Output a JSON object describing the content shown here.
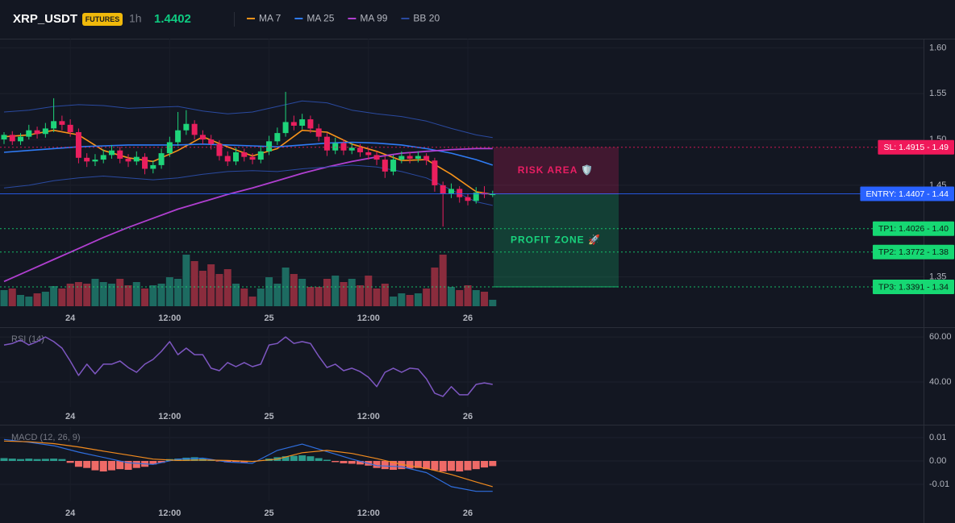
{
  "header": {
    "symbol": "XRP_USDT",
    "badge": "FUTURES",
    "interval": "1h",
    "last_price": 1.4402
  },
  "chart_data": [
    {
      "type": "candlestick",
      "up_color": "#1ed47a",
      "down_color": "#ea1f5e",
      "volume_up_color": "#1d6b61",
      "volume_down_color": "#8a2c3d",
      "candles": [
        [
          1.5,
          1.508,
          1.495,
          1.505
        ],
        [
          1.505,
          1.509,
          1.494,
          1.498
        ],
        [
          1.498,
          1.507,
          1.494,
          1.503
        ],
        [
          1.503,
          1.516,
          1.5,
          1.51
        ],
        [
          1.51,
          1.514,
          1.501,
          1.506
        ],
        [
          1.506,
          1.518,
          1.502,
          1.512
        ],
        [
          1.512,
          1.545,
          1.508,
          1.52
        ],
        [
          1.52,
          1.526,
          1.51,
          1.516
        ],
        [
          1.516,
          1.522,
          1.503,
          1.508
        ],
        [
          1.508,
          1.512,
          1.474,
          1.48
        ],
        [
          1.48,
          1.485,
          1.47,
          1.476
        ],
        [
          1.476,
          1.484,
          1.471,
          1.478
        ],
        [
          1.478,
          1.489,
          1.474,
          1.483
        ],
        [
          1.483,
          1.494,
          1.479,
          1.488
        ],
        [
          1.488,
          1.492,
          1.474,
          1.479
        ],
        [
          1.479,
          1.484,
          1.47,
          1.476
        ],
        [
          1.476,
          1.487,
          1.472,
          1.481
        ],
        [
          1.481,
          1.485,
          1.462,
          1.468
        ],
        [
          1.468,
          1.477,
          1.463,
          1.472
        ],
        [
          1.472,
          1.49,
          1.468,
          1.485
        ],
        [
          1.485,
          1.503,
          1.481,
          1.497
        ],
        [
          1.497,
          1.53,
          1.493,
          1.51
        ],
        [
          1.51,
          1.532,
          1.505,
          1.517
        ],
        [
          1.517,
          1.521,
          1.5,
          1.505
        ],
        [
          1.505,
          1.51,
          1.495,
          1.5
        ],
        [
          1.5,
          1.505,
          1.489,
          1.495
        ],
        [
          1.495,
          1.499,
          1.477,
          1.482
        ],
        [
          1.482,
          1.487,
          1.471,
          1.476
        ],
        [
          1.476,
          1.491,
          1.472,
          1.486
        ],
        [
          1.486,
          1.49,
          1.476,
          1.481
        ],
        [
          1.481,
          1.485,
          1.473,
          1.478
        ],
        [
          1.478,
          1.493,
          1.474,
          1.487
        ],
        [
          1.487,
          1.504,
          1.483,
          1.498
        ],
        [
          1.498,
          1.513,
          1.494,
          1.507
        ],
        [
          1.507,
          1.552,
          1.503,
          1.519
        ],
        [
          1.519,
          1.526,
          1.51,
          1.515
        ],
        [
          1.515,
          1.528,
          1.511,
          1.522
        ],
        [
          1.522,
          1.526,
          1.507,
          1.512
        ],
        [
          1.512,
          1.517,
          1.498,
          1.503
        ],
        [
          1.503,
          1.507,
          1.482,
          1.488
        ],
        [
          1.488,
          1.502,
          1.484,
          1.496
        ],
        [
          1.496,
          1.5,
          1.483,
          1.488
        ],
        [
          1.488,
          1.496,
          1.484,
          1.491
        ],
        [
          1.491,
          1.495,
          1.481,
          1.486
        ],
        [
          1.486,
          1.49,
          1.478,
          1.483
        ],
        [
          1.483,
          1.487,
          1.472,
          1.478
        ],
        [
          1.478,
          1.482,
          1.458,
          1.465
        ],
        [
          1.465,
          1.483,
          1.461,
          1.478
        ],
        [
          1.478,
          1.487,
          1.474,
          1.482
        ],
        [
          1.482,
          1.486,
          1.474,
          1.479
        ],
        [
          1.479,
          1.487,
          1.475,
          1.482
        ],
        [
          1.482,
          1.485,
          1.472,
          1.477
        ],
        [
          1.477,
          1.48,
          1.443,
          1.45
        ],
        [
          1.45,
          1.454,
          1.405,
          1.441
        ],
        [
          1.441,
          1.452,
          1.436,
          1.446
        ],
        [
          1.446,
          1.449,
          1.431,
          1.437
        ],
        [
          1.437,
          1.441,
          1.428,
          1.433
        ],
        [
          1.433,
          1.448,
          1.43,
          1.442
        ],
        [
          1.442,
          1.449,
          1.436,
          1.44
        ],
        [
          1.44,
          1.444,
          1.437,
          1.4402
        ]
      ],
      "volume": [
        20,
        22,
        14,
        12,
        16,
        18,
        25,
        22,
        28,
        30,
        28,
        34,
        30,
        28,
        34,
        26,
        30,
        22,
        26,
        28,
        36,
        34,
        64,
        56,
        44,
        52,
        40,
        46,
        28,
        22,
        12,
        22,
        36,
        28,
        48,
        40,
        34,
        24,
        24,
        34,
        38,
        30,
        34,
        26,
        38,
        22,
        28,
        12,
        16,
        14,
        16,
        22,
        48,
        64,
        24,
        20,
        26,
        20,
        18,
        8
      ],
      "ma_x": [
        0,
        3,
        6,
        9,
        12,
        15,
        18,
        21,
        24,
        27,
        30,
        33,
        36,
        39,
        42,
        45,
        48,
        51,
        54,
        57,
        59
      ],
      "series": [
        {
          "name": "MA 7",
          "color": "#f7931a",
          "values": [
            1.503,
            1.505,
            1.51,
            1.505,
            1.488,
            1.48,
            1.476,
            1.488,
            1.503,
            1.492,
            1.482,
            1.49,
            1.51,
            1.508,
            1.495,
            1.487,
            1.477,
            1.478,
            1.462,
            1.443,
            1.44
          ]
        },
        {
          "name": "MA 25",
          "color": "#2f7bf5",
          "values": [
            1.486,
            1.488,
            1.49,
            1.492,
            1.493,
            1.494,
            1.494,
            1.494,
            1.495,
            1.494,
            1.493,
            1.492,
            1.494,
            1.496,
            1.497,
            1.496,
            1.494,
            1.49,
            1.485,
            1.478,
            1.472
          ]
        },
        {
          "name": "MA 99",
          "color": "#b03fd0",
          "values": [
            1.345,
            1.357,
            1.369,
            1.381,
            1.393,
            1.404,
            1.414,
            1.424,
            1.432,
            1.44,
            1.447,
            1.455,
            1.463,
            1.47,
            1.476,
            1.481,
            1.485,
            1.487,
            1.489,
            1.49,
            1.49
          ]
        },
        {
          "name": "BB 20",
          "color": "#2a4aa0",
          "upper": [
            1.53,
            1.532,
            1.536,
            1.538,
            1.537,
            1.534,
            1.535,
            1.536,
            1.531,
            1.528,
            1.53,
            1.536,
            1.542,
            1.54,
            1.532,
            1.528,
            1.525,
            1.52,
            1.512,
            1.505,
            1.502
          ],
          "lower": [
            1.447,
            1.45,
            1.455,
            1.458,
            1.46,
            1.458,
            1.456,
            1.458,
            1.462,
            1.465,
            1.466,
            1.465,
            1.468,
            1.47,
            1.472,
            1.47,
            1.465,
            1.458,
            1.445,
            1.432,
            1.428
          ]
        }
      ],
      "levels": [
        {
          "label": "SL: 1.4915 - 1.49",
          "value": 1.4915,
          "color": "#f0185a",
          "style": "dotted"
        },
        {
          "label": "ENTRY: 1.4407 - 1.44",
          "value": 1.4407,
          "color": "#2962ff",
          "style": "solid"
        },
        {
          "label": "TP1: 1.4026 - 1.40",
          "value": 1.4026,
          "color": "#16d873",
          "style": "dotted"
        },
        {
          "label": "TP2: 1.3772 - 1.38",
          "value": 1.3772,
          "color": "#16d873",
          "style": "dotted"
        },
        {
          "label": "TP3: 1.3391 - 1.34",
          "value": 1.3391,
          "color": "#16d873",
          "style": "dotted"
        }
      ],
      "zones": [
        {
          "label": "RISK AREA 🛡️",
          "from_level": 0,
          "to_level": 1,
          "color": "#e91e63"
        },
        {
          "label": "PROFIT ZONE 🚀",
          "from_level": 1,
          "to_level": 4,
          "color": "#19d37d"
        }
      ],
      "xticks": [
        {
          "value": 8,
          "label": "24"
        },
        {
          "value": 20,
          "label": "12:00"
        },
        {
          "value": 32,
          "label": "25"
        },
        {
          "value": 44,
          "label": "12:00"
        },
        {
          "value": 56,
          "label": "26"
        }
      ],
      "ylim": [
        1.318,
        1.61
      ],
      "yticks": [
        {
          "value": 1.6,
          "label": "1.60"
        },
        {
          "value": 1.55,
          "label": "1.55"
        },
        {
          "value": 1.5,
          "label": "1.50"
        },
        {
          "value": 1.45,
          "label": "1.45"
        },
        {
          "value": 1.35,
          "label": "1.35"
        }
      ]
    },
    {
      "type": "line",
      "title": "RSI (14)",
      "color": "#7e57c2",
      "values": [
        56.4,
        57.1,
        58.6,
        56.4,
        57.9,
        60.0,
        57.9,
        55.0,
        49.3,
        42.9,
        47.9,
        43.6,
        47.9,
        47.9,
        49.3,
        46.4,
        44.3,
        47.9,
        50.0,
        53.6,
        57.9,
        52.1,
        55.0,
        52.1,
        52.1,
        46.1,
        45.0,
        48.6,
        46.8,
        48.6,
        46.8,
        47.9,
        56.4,
        57.1,
        60.0,
        57.1,
        57.9,
        57.1,
        51.4,
        46.4,
        47.9,
        45.0,
        46.1,
        44.6,
        42.1,
        37.9,
        44.3,
        46.1,
        44.3,
        46.1,
        45.7,
        41.4,
        35.0,
        33.6,
        37.9,
        34.3,
        34.3,
        38.9,
        39.6,
        38.9
      ],
      "ylim": [
        28.9,
        63.6
      ],
      "yticks": [
        {
          "value": 60,
          "label": "60.00"
        },
        {
          "value": 40,
          "label": "40.00"
        }
      ]
    },
    {
      "type": "macd",
      "title": "MACD (12, 26, 9)",
      "macd_color": "#2f6fe0",
      "signal_color": "#f28b1e",
      "hist_up_color": "#2a9a8c",
      "hist_down_color": "#ef6a67",
      "macd": [
        0.0092,
        0.008,
        0.0065,
        0.0038,
        0.0015,
        -0.0008,
        -0.0015,
        0.0008,
        0.0012,
        -0.0005,
        -0.001,
        0.0045,
        0.0072,
        0.004,
        0.0008,
        -0.002,
        -0.0025,
        -0.005,
        -0.011,
        -0.013,
        -0.013
      ],
      "signal": [
        0.0085,
        0.0082,
        0.0074,
        0.006,
        0.0042,
        0.0025,
        0.0008,
        0.0002,
        0.0004,
        0.0002,
        -0.0002,
        0.0008,
        0.0035,
        0.0045,
        0.0032,
        0.001,
        -0.0015,
        -0.0032,
        -0.0058,
        -0.009,
        -0.011
      ],
      "histogram": [
        0.0012,
        0.001,
        0.0008,
        0.001,
        0.0008,
        0.0009,
        0.001,
        0.0008,
        -0.0008,
        -0.0025,
        -0.003,
        -0.004,
        -0.0045,
        -0.004,
        -0.0035,
        -0.0038,
        -0.003,
        -0.0025,
        -0.0015,
        -0.0008,
        0.0008,
        0.001,
        0.0014,
        0.0016,
        0.001,
        0.0005,
        -0.0002,
        -0.0006,
        -0.0004,
        -0.0006,
        -0.0003,
        0.0002,
        0.001,
        0.0016,
        0.002,
        0.0022,
        0.0024,
        0.002,
        0.0012,
        0.0005,
        -0.0005,
        -0.001,
        -0.0012,
        -0.0015,
        -0.002,
        -0.003,
        -0.0035,
        -0.0038,
        -0.0035,
        -0.0032,
        -0.003,
        -0.0035,
        -0.004,
        -0.0045,
        -0.0042,
        -0.0045,
        -0.004,
        -0.0035,
        -0.0028,
        -0.0022
      ],
      "ylim": [
        -0.01724,
        0.01448
      ],
      "yticks": [
        {
          "value": 0.01,
          "label": "0.01"
        },
        {
          "value": 0,
          "label": "0.00"
        },
        {
          "value": -0.01,
          "label": "-0.01"
        }
      ]
    }
  ]
}
